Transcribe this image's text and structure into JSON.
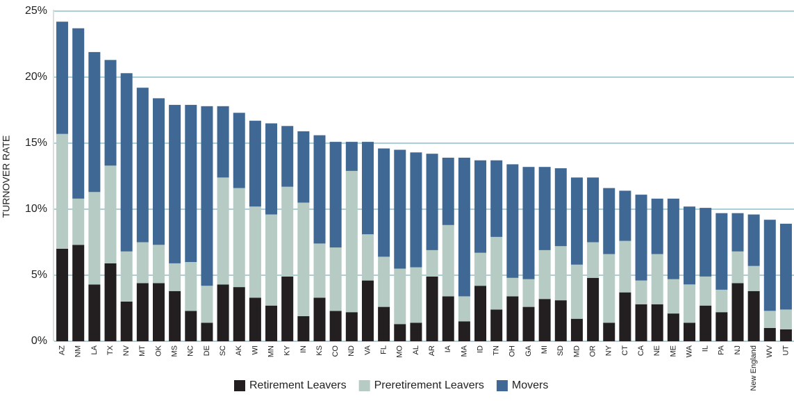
{
  "chart_data": {
    "type": "stacked_bar",
    "y_label": "TURNOVER RATE",
    "categories": [
      "AZ",
      "NM",
      "LA",
      "TX",
      "NV",
      "MT",
      "OK",
      "MS",
      "NC",
      "DE",
      "SC",
      "AK",
      "WI",
      "MN",
      "KY",
      "IN",
      "KS",
      "CO",
      "ND",
      "VA",
      "FL",
      "MO",
      "AL",
      "AR",
      "IA",
      "MA",
      "ID",
      "TN",
      "OH",
      "GA",
      "MI",
      "SD",
      "MD",
      "OR",
      "NY",
      "CT",
      "CA",
      "NE",
      "ME",
      "WA",
      "IL",
      "PA",
      "NJ",
      "New England",
      "WV",
      "UT"
    ],
    "series": [
      {
        "name": "Retirement Leavers",
        "color": "#231f20",
        "values": [
          7.0,
          7.3,
          4.3,
          5.9,
          3.0,
          4.4,
          4.4,
          3.8,
          2.3,
          1.4,
          4.3,
          4.1,
          3.3,
          2.7,
          4.9,
          1.9,
          3.3,
          2.3,
          2.2,
          4.6,
          2.6,
          1.3,
          1.4,
          4.9,
          3.4,
          1.5,
          4.2,
          2.4,
          3.4,
          2.6,
          3.2,
          3.1,
          1.7,
          4.8,
          1.4,
          3.7,
          2.8,
          2.8,
          2.1,
          1.4,
          2.7,
          2.2,
          4.4,
          3.8,
          1.0,
          0.9
        ]
      },
      {
        "name": "Preretirement Leavers",
        "color": "#b5cbc3",
        "values": [
          8.7,
          3.5,
          7.0,
          7.4,
          3.8,
          3.1,
          2.9,
          2.1,
          3.7,
          2.8,
          8.1,
          7.5,
          6.9,
          6.9,
          6.8,
          8.6,
          4.1,
          4.8,
          10.7,
          3.5,
          3.8,
          4.2,
          4.2,
          2.0,
          5.4,
          1.9,
          2.5,
          5.5,
          1.4,
          2.1,
          3.7,
          4.1,
          4.1,
          2.7,
          5.2,
          3.9,
          1.8,
          3.8,
          2.6,
          2.9,
          2.2,
          1.7,
          2.4,
          1.9,
          1.3,
          1.5
        ]
      },
      {
        "name": "Movers",
        "color": "#3f6894",
        "values": [
          8.5,
          12.9,
          10.6,
          8.0,
          13.5,
          11.7,
          11.1,
          12.0,
          11.9,
          13.6,
          5.4,
          5.7,
          6.5,
          6.9,
          4.6,
          5.4,
          8.2,
          8.0,
          2.2,
          7.0,
          8.2,
          9.0,
          8.7,
          7.3,
          5.1,
          10.5,
          7.0,
          5.8,
          8.6,
          8.5,
          6.3,
          5.9,
          6.6,
          4.9,
          5.0,
          3.8,
          6.5,
          4.2,
          6.1,
          5.9,
          5.2,
          5.8,
          2.9,
          3.9,
          6.9,
          6.5
        ]
      }
    ],
    "ylim": [
      0,
      25
    ],
    "yticks": [
      {
        "value": 0,
        "label": "0%"
      },
      {
        "value": 5,
        "label": "5%"
      },
      {
        "value": 10,
        "label": "10%"
      },
      {
        "value": 15,
        "label": "15%"
      },
      {
        "value": 20,
        "label": "20%"
      },
      {
        "value": 25,
        "label": "25%"
      }
    ],
    "grid": true,
    "legend": "bottom"
  }
}
